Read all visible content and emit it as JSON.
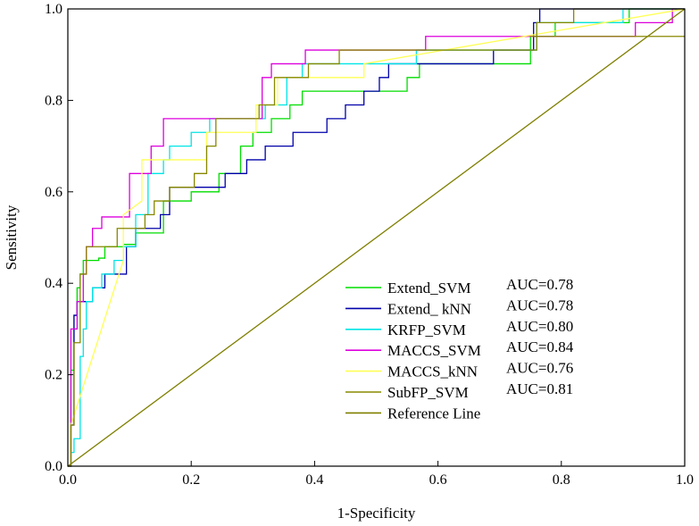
{
  "chart_data": {
    "type": "line",
    "title": "",
    "xlabel": "1-Specificity",
    "ylabel": "Sensitivity",
    "xlim": [
      0,
      1
    ],
    "ylim": [
      0,
      1
    ],
    "xticks": [
      0.0,
      0.2,
      0.4,
      0.6,
      0.8,
      1.0
    ],
    "yticks": [
      0.0,
      0.2,
      0.4,
      0.6,
      0.8,
      1.0
    ],
    "xtick_labels": [
      "0.0",
      "0.2",
      "0.4",
      "0.6",
      "0.8",
      "1.0"
    ],
    "ytick_labels": [
      "0.0",
      "0.2",
      "0.4",
      "0.6",
      "0.8",
      "1.0"
    ],
    "legend_position": "bottom-right",
    "series": [
      {
        "name": "Extend_SVM",
        "auc_label": "AUC=0.78",
        "color": "#00dd00",
        "x": [
          0,
          0.005,
          0.005,
          0.01,
          0.01,
          0.015,
          0.015,
          0.02,
          0.02,
          0.025,
          0.025,
          0.05,
          0.05,
          0.06,
          0.06,
          0.09,
          0.09,
          0.11,
          0.11,
          0.155,
          0.155,
          0.2,
          0.2,
          0.245,
          0.245,
          0.28,
          0.28,
          0.3,
          0.3,
          0.33,
          0.33,
          0.36,
          0.36,
          0.38,
          0.38,
          0.4,
          0.4,
          0.55,
          0.55,
          0.57,
          0.57,
          0.585,
          0.585,
          0.6,
          0.6,
          0.75,
          0.75,
          0.79,
          0.79,
          0.83,
          0.83,
          0.91,
          0.91,
          1.0
        ],
        "y": [
          0,
          0,
          0.21,
          0.21,
          0.33,
          0.33,
          0.39,
          0.39,
          0.42,
          0.42,
          0.45,
          0.45,
          0.455,
          0.455,
          0.48,
          0.48,
          0.485,
          0.485,
          0.51,
          0.51,
          0.58,
          0.58,
          0.6,
          0.6,
          0.64,
          0.64,
          0.7,
          0.7,
          0.73,
          0.73,
          0.76,
          0.76,
          0.79,
          0.79,
          0.82,
          0.82,
          0.82,
          0.82,
          0.85,
          0.85,
          0.88,
          0.88,
          0.88,
          0.88,
          0.88,
          0.88,
          0.94,
          0.94,
          0.97,
          0.97,
          0.97,
          0.97,
          1.0,
          1.0
        ]
      },
      {
        "name": "Extend_ kNN",
        "auc_label": "AUC=0.78",
        "color": "#0000aa",
        "x": [
          0,
          0.005,
          0.005,
          0.01,
          0.01,
          0.015,
          0.015,
          0.04,
          0.04,
          0.06,
          0.06,
          0.095,
          0.095,
          0.11,
          0.11,
          0.15,
          0.15,
          0.165,
          0.165,
          0.255,
          0.255,
          0.29,
          0.29,
          0.32,
          0.32,
          0.365,
          0.365,
          0.42,
          0.42,
          0.45,
          0.45,
          0.48,
          0.48,
          0.505,
          0.505,
          0.52,
          0.52,
          0.69,
          0.69,
          0.755,
          0.755,
          0.765,
          0.765,
          1.0
        ],
        "y": [
          0,
          0,
          0.09,
          0.09,
          0.33,
          0.33,
          0.36,
          0.36,
          0.39,
          0.39,
          0.42,
          0.42,
          0.48,
          0.48,
          0.52,
          0.52,
          0.55,
          0.55,
          0.61,
          0.61,
          0.64,
          0.64,
          0.67,
          0.67,
          0.7,
          0.7,
          0.73,
          0.73,
          0.76,
          0.76,
          0.79,
          0.79,
          0.82,
          0.82,
          0.85,
          0.85,
          0.88,
          0.88,
          0.91,
          0.91,
          0.97,
          0.97,
          1.0,
          1.0
        ]
      },
      {
        "name": "KRFP_SVM",
        "auc_label": "AUC=0.80",
        "color": "#00e5e5",
        "x": [
          0,
          0.005,
          0.005,
          0.01,
          0.01,
          0.02,
          0.02,
          0.025,
          0.025,
          0.03,
          0.03,
          0.04,
          0.04,
          0.055,
          0.055,
          0.075,
          0.075,
          0.09,
          0.09,
          0.11,
          0.11,
          0.13,
          0.13,
          0.155,
          0.155,
          0.165,
          0.165,
          0.2,
          0.2,
          0.23,
          0.23,
          0.245,
          0.245,
          0.32,
          0.32,
          0.355,
          0.355,
          0.38,
          0.38,
          0.45,
          0.45,
          0.565,
          0.565,
          0.76,
          0.76,
          0.9,
          0.9,
          1.0
        ],
        "y": [
          0,
          0,
          0.03,
          0.03,
          0.06,
          0.06,
          0.24,
          0.24,
          0.3,
          0.3,
          0.36,
          0.36,
          0.39,
          0.39,
          0.42,
          0.42,
          0.45,
          0.45,
          0.48,
          0.48,
          0.55,
          0.55,
          0.64,
          0.64,
          0.67,
          0.67,
          0.7,
          0.7,
          0.73,
          0.73,
          0.76,
          0.76,
          0.76,
          0.76,
          0.79,
          0.79,
          0.85,
          0.85,
          0.88,
          0.88,
          0.88,
          0.88,
          0.91,
          0.91,
          0.97,
          0.97,
          1.0,
          1.0
        ]
      },
      {
        "name": "MACCS_SVM",
        "auc_label": "AUC=0.84",
        "color": "#dd00dd",
        "x": [
          0,
          0.005,
          0.005,
          0.015,
          0.015,
          0.025,
          0.025,
          0.03,
          0.03,
          0.04,
          0.04,
          0.055,
          0.055,
          0.1,
          0.1,
          0.135,
          0.135,
          0.155,
          0.155,
          0.19,
          0.19,
          0.235,
          0.235,
          0.315,
          0.315,
          0.33,
          0.33,
          0.385,
          0.385,
          0.58,
          0.58,
          0.92,
          0.92,
          0.98,
          0.98,
          1.0
        ],
        "y": [
          0,
          0,
          0.3,
          0.3,
          0.36,
          0.36,
          0.42,
          0.42,
          0.48,
          0.48,
          0.52,
          0.52,
          0.545,
          0.545,
          0.64,
          0.64,
          0.7,
          0.7,
          0.76,
          0.76,
          0.76,
          0.76,
          0.76,
          0.76,
          0.85,
          0.85,
          0.88,
          0.88,
          0.91,
          0.91,
          0.94,
          0.94,
          0.97,
          0.97,
          1.0,
          1.0
        ]
      },
      {
        "name": "MACCS_kNN",
        "auc_label": "AUC=0.76",
        "color": "#ffff55",
        "x": [
          0,
          0.005,
          0.005,
          0.09,
          0.09,
          0.12,
          0.12,
          0.165,
          0.165,
          0.225,
          0.225,
          0.305,
          0.305,
          0.34,
          0.34,
          0.48,
          0.48,
          1.0
        ],
        "y": [
          0,
          0,
          0.09,
          0.45,
          0.55,
          0.58,
          0.67,
          0.67,
          0.67,
          0.67,
          0.73,
          0.73,
          0.79,
          0.79,
          0.85,
          0.85,
          0.88,
          1.0
        ]
      },
      {
        "name": "SubFP_SVM",
        "auc_label": "AUC=0.81",
        "color": "#888800",
        "x": [
          0,
          0.005,
          0.005,
          0.01,
          0.01,
          0.02,
          0.02,
          0.03,
          0.03,
          0.08,
          0.08,
          0.125,
          0.125,
          0.14,
          0.14,
          0.165,
          0.165,
          0.205,
          0.205,
          0.225,
          0.225,
          0.24,
          0.24,
          0.31,
          0.31,
          0.335,
          0.335,
          0.39,
          0.39,
          0.44,
          0.44,
          0.76,
          0.76,
          0.82,
          0.82,
          1.0
        ],
        "y": [
          0,
          0,
          0.09,
          0.09,
          0.27,
          0.27,
          0.42,
          0.42,
          0.48,
          0.48,
          0.52,
          0.52,
          0.55,
          0.55,
          0.58,
          0.58,
          0.61,
          0.61,
          0.64,
          0.64,
          0.7,
          0.7,
          0.76,
          0.76,
          0.79,
          0.79,
          0.85,
          0.85,
          0.88,
          0.88,
          0.91,
          0.91,
          0.97,
          0.97,
          1.0,
          1.0
        ]
      },
      {
        "name": "Reference Line",
        "auc_label": "",
        "color": "#7f7f00",
        "x": [
          0,
          1
        ],
        "y": [
          0,
          1
        ]
      }
    ],
    "horizontal_segment": {
      "x": [
        0.75,
        1.0
      ],
      "y": [
        0.94,
        0.94
      ],
      "color": "#888800"
    }
  }
}
